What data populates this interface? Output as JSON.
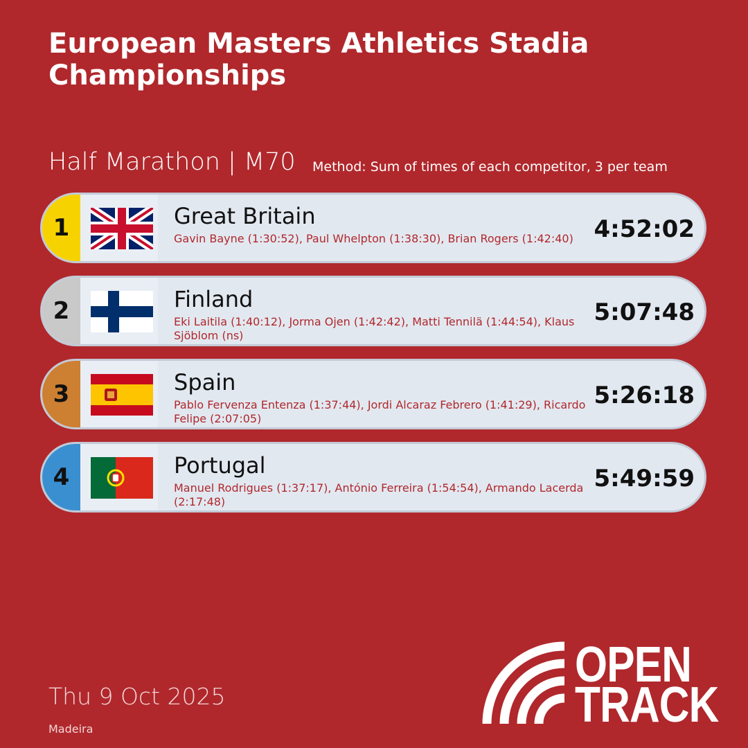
{
  "header": {
    "title": "European Masters Athletics Stadia Championships",
    "event": "Half Marathon | M70",
    "method": "Method: Sum of times of each competitor, 3 per team"
  },
  "results": [
    {
      "rank": "1",
      "country": "Great Britain",
      "athletes": "Gavin Bayne (1:30:52), Paul Whelpton (1:38:30), Brian Rogers (1:42:40)",
      "time": "4:52:02"
    },
    {
      "rank": "2",
      "country": "Finland",
      "athletes": "Eki Laitila (1:40:12), Jorma Ojen (1:42:42), Matti Tennilä (1:44:54), Klaus Sjöblom (ns)",
      "time": "5:07:48"
    },
    {
      "rank": "3",
      "country": "Spain",
      "athletes": "Pablo Fervenza Entenza (1:37:44), Jordi Alcaraz Febrero (1:41:29), Ricardo Felipe (2:07:05)",
      "time": "5:26:18"
    },
    {
      "rank": "4",
      "country": "Portugal",
      "athletes": "Manuel Rodrigues (1:37:17), António Ferreira (1:54:54), Armando Lacerda (2:17:48)",
      "time": "5:49:59"
    }
  ],
  "footer": {
    "date": "Thu 9 Oct 2025",
    "location": "Madeira",
    "logo": [
      "OPEN",
      "TRACK"
    ]
  }
}
